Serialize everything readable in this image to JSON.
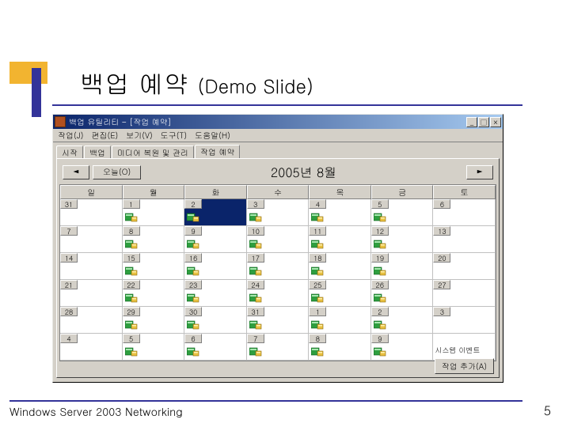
{
  "colors": {
    "accent_orange": "#f2b430",
    "accent_blue": "#333399",
    "titlebar_start": "#0a246a",
    "titlebar_end": "#a6caf0",
    "win_bg": "#d4d0c8",
    "cell_selected": "#0a246a",
    "icon_green": "#2e9e3f",
    "icon_yellow": "#e8c040"
  },
  "typography": {
    "title_fontsize_pt": 24,
    "subtitle_fontsize_pt": 18,
    "ui_fontsize_pt": 8,
    "monthlabel_fontsize_pt": 12,
    "footer_fontsize_pt": 11
  },
  "slide": {
    "title_main": "백업 예약",
    "title_sub": "(Demo Slide)",
    "footer": "Windows  Server 2003 Networking",
    "number": "5"
  },
  "window": {
    "title": "백업 유틸리티 - [작업 예약]",
    "min_label": "_",
    "max_label": "□",
    "close_label": "×",
    "menus": [
      "작업(J)",
      "편집(E)",
      "보기(V)",
      "도구(T)",
      "도움말(H)"
    ],
    "tabs": [
      "시작",
      "백업",
      "미디어 복원 및 관리",
      "작업 예약"
    ],
    "active_tab_index": 3,
    "nav_prev": "◄",
    "nav_next": "►",
    "today_label": "오늘(O)",
    "month_label": "2005년 8월",
    "add_job_label": "작업 추가(A)"
  },
  "calendar": {
    "day_headers": [
      "일",
      "월",
      "화",
      "수",
      "목",
      "금",
      "토"
    ],
    "selected": [
      0,
      2
    ],
    "rows": [
      [
        {
          "n": "31",
          "has_icon": false
        },
        {
          "n": "1",
          "has_icon": true
        },
        {
          "n": "2",
          "has_icon": true
        },
        {
          "n": "3",
          "has_icon": true
        },
        {
          "n": "4",
          "has_icon": true
        },
        {
          "n": "5",
          "has_icon": true
        },
        {
          "n": "6",
          "has_icon": false
        }
      ],
      [
        {
          "n": "7",
          "has_icon": false
        },
        {
          "n": "8",
          "has_icon": true
        },
        {
          "n": "9",
          "has_icon": true
        },
        {
          "n": "10",
          "has_icon": true
        },
        {
          "n": "11",
          "has_icon": true
        },
        {
          "n": "12",
          "has_icon": true
        },
        {
          "n": "13",
          "has_icon": false
        }
      ],
      [
        {
          "n": "14",
          "has_icon": false
        },
        {
          "n": "15",
          "has_icon": true
        },
        {
          "n": "16",
          "has_icon": true
        },
        {
          "n": "17",
          "has_icon": true
        },
        {
          "n": "18",
          "has_icon": true
        },
        {
          "n": "19",
          "has_icon": true
        },
        {
          "n": "20",
          "has_icon": false
        }
      ],
      [
        {
          "n": "21",
          "has_icon": false
        },
        {
          "n": "22",
          "has_icon": true
        },
        {
          "n": "23",
          "has_icon": true
        },
        {
          "n": "24",
          "has_icon": true
        },
        {
          "n": "25",
          "has_icon": true
        },
        {
          "n": "26",
          "has_icon": true
        },
        {
          "n": "27",
          "has_icon": false
        }
      ],
      [
        {
          "n": "28",
          "has_icon": false
        },
        {
          "n": "29",
          "has_icon": true
        },
        {
          "n": "30",
          "has_icon": true
        },
        {
          "n": "31",
          "has_icon": true
        },
        {
          "n": "1",
          "has_icon": true
        },
        {
          "n": "2",
          "has_icon": true
        },
        {
          "n": "3",
          "has_icon": false
        }
      ],
      [
        {
          "n": "4",
          "has_icon": false
        },
        {
          "n": "5",
          "has_icon": true
        },
        {
          "n": "6",
          "has_icon": true
        },
        {
          "n": "7",
          "has_icon": true
        },
        {
          "n": "8",
          "has_icon": true
        },
        {
          "n": "9",
          "has_icon": true
        },
        {
          "n": "",
          "has_icon": false,
          "system_event": "시스템 이벤트"
        }
      ]
    ]
  }
}
